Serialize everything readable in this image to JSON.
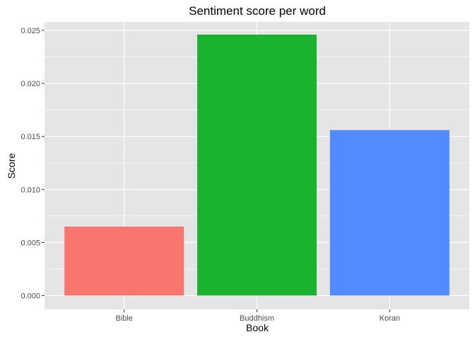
{
  "chart_data": {
    "type": "bar",
    "title": "Sentiment score per word",
    "xlabel": "Book",
    "ylabel": "Score",
    "categories": [
      "Bible",
      "Buddhism",
      "Koran"
    ],
    "values": [
      0.0065,
      0.0246,
      0.0156
    ],
    "colors": [
      "#F8766D",
      "#1AB22F",
      "#528BFF"
    ],
    "ylim": [
      -0.0013,
      0.0258
    ],
    "yticks": [
      0.0,
      0.005,
      0.01,
      0.015,
      0.02,
      0.025
    ],
    "ytick_labels": [
      "0.000",
      "0.005",
      "0.010",
      "0.015",
      "0.020",
      "0.025"
    ],
    "grid": true,
    "legend": "none",
    "panel_background": "#E5E5E5",
    "grid_color": "#FFFFFF"
  }
}
